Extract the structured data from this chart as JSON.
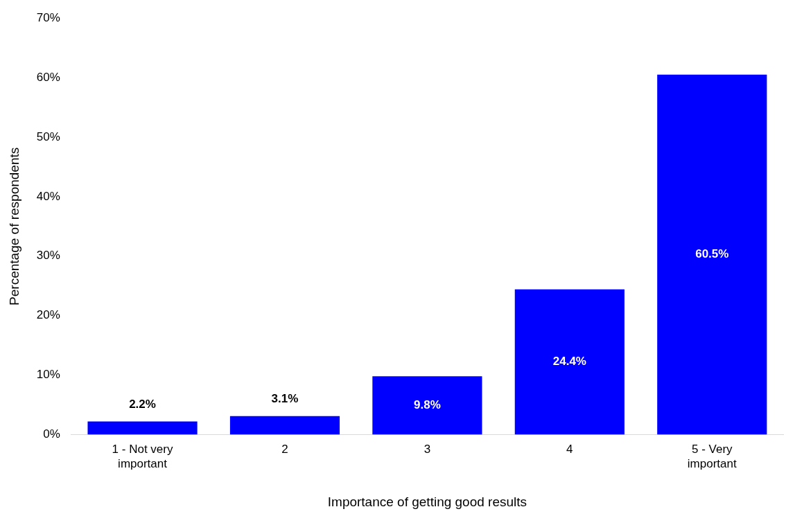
{
  "chart_data": {
    "type": "bar",
    "xlabel": "Importance of getting good results",
    "ylabel": "Percentage of respondents",
    "categories": [
      "1 - Not very important",
      "2",
      "3",
      "4",
      "5 - Very important"
    ],
    "values": [
      2.2,
      3.1,
      9.8,
      24.4,
      60.5
    ],
    "value_labels": [
      "2.2%",
      "3.1%",
      "9.8%",
      "24.4%",
      "60.5%"
    ],
    "color": "#0000ff",
    "ylim": [
      0,
      70
    ],
    "yticks": [
      {
        "value": 0,
        "label": "0%"
      },
      {
        "value": 10,
        "label": "10%"
      },
      {
        "value": 20,
        "label": "20%"
      },
      {
        "value": 30,
        "label": "30%"
      },
      {
        "value": 40,
        "label": "40%"
      },
      {
        "value": 50,
        "label": "50%"
      },
      {
        "value": 60,
        "label": "60%"
      },
      {
        "value": 70,
        "label": "70%"
      }
    ],
    "grid": false,
    "legend": false
  }
}
